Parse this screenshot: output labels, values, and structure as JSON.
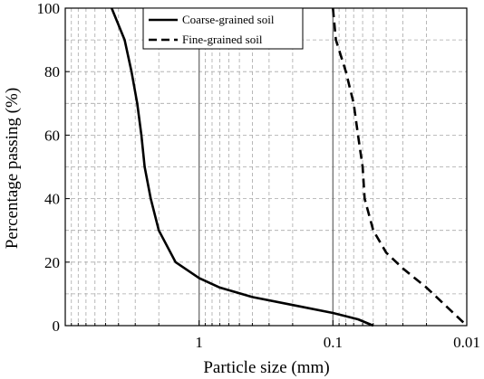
{
  "chart_data": {
    "type": "line",
    "xlabel": "Particle size (mm)",
    "ylabel": "Percentage passing (%)",
    "x_scale": "log",
    "x_reversed": true,
    "xlim": [
      10,
      0.01
    ],
    "ylim": [
      0,
      100
    ],
    "xticks": [
      {
        "value": 1,
        "label": "1"
      },
      {
        "value": 0.1,
        "label": "0.1"
      },
      {
        "value": 0.01,
        "label": "0.01"
      }
    ],
    "yticks": [
      0,
      20,
      40,
      60,
      80,
      100
    ],
    "grid": {
      "major": true,
      "minor": true,
      "style": "dashed"
    },
    "reference_lines_x": [
      1,
      0.1
    ],
    "legend": {
      "position": "top-center",
      "framed": true
    },
    "series": [
      {
        "name": "Coarse-grained soil",
        "style": "solid",
        "points": [
          [
            4.5,
            100
          ],
          [
            3.6,
            90
          ],
          [
            3.2,
            80
          ],
          [
            2.9,
            70
          ],
          [
            2.7,
            60
          ],
          [
            2.55,
            50
          ],
          [
            2.3,
            40
          ],
          [
            2.0,
            30
          ],
          [
            1.5,
            20
          ],
          [
            1.0,
            15
          ],
          [
            0.7,
            12
          ],
          [
            0.4,
            9
          ],
          [
            0.2,
            6.5
          ],
          [
            0.1,
            4
          ],
          [
            0.065,
            2
          ],
          [
            0.05,
            0
          ]
        ]
      },
      {
        "name": "Fine-grained soil",
        "style": "dashed",
        "points": [
          [
            0.1,
            100
          ],
          [
            0.095,
            90
          ],
          [
            0.08,
            80
          ],
          [
            0.07,
            70
          ],
          [
            0.065,
            60
          ],
          [
            0.06,
            50
          ],
          [
            0.058,
            40
          ],
          [
            0.05,
            30
          ],
          [
            0.04,
            23
          ],
          [
            0.03,
            18
          ],
          [
            0.02,
            12
          ],
          [
            0.01,
            0
          ]
        ]
      }
    ]
  },
  "colors": {
    "line": "#000000",
    "grid": "#a8a8a8",
    "ref": "#707070"
  }
}
